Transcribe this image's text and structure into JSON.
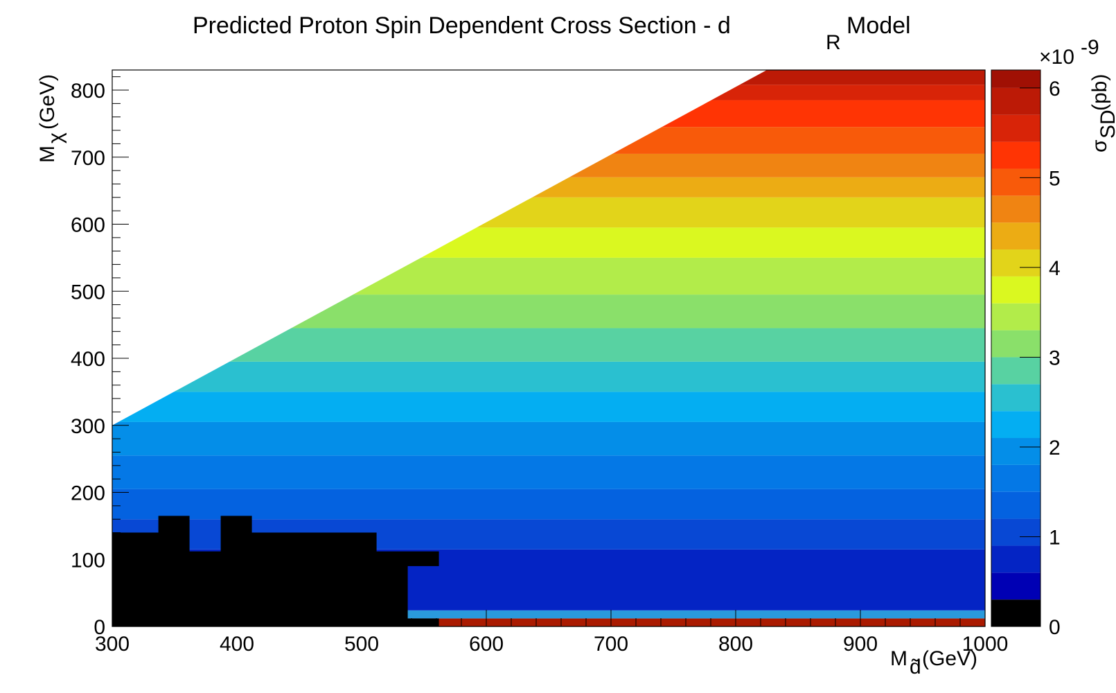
{
  "chart_data": {
    "type": "heatmap",
    "title": "Predicted Proton Spin Dependent Cross Section - d",
    "title_subscript": "R",
    "title_suffix": "Model",
    "xlabel_main": "M",
    "xlabel_sub": "d̃",
    "xlabel_unit": "(GeV)",
    "ylabel_main": "M",
    "ylabel_sub": "χ",
    "ylabel_unit": "(GeV)",
    "zlabel_main": "σ",
    "zlabel_sub": "SD",
    "zlabel_unit": "(pb)",
    "z_multiplier_base": "×10",
    "z_multiplier_exp": "-9",
    "xlim": [
      300,
      1000
    ],
    "ylim": [
      0,
      830
    ],
    "zlim": [
      0,
      6.2
    ],
    "x_ticks": [
      "300",
      "400",
      "500",
      "600",
      "700",
      "800",
      "900",
      "1000"
    ],
    "x_tick_values": [
      300,
      400,
      500,
      600,
      700,
      800,
      900,
      1000
    ],
    "y_ticks": [
      "0",
      "100",
      "200",
      "300",
      "400",
      "500",
      "600",
      "700",
      "800"
    ],
    "y_tick_values": [
      0,
      100,
      200,
      300,
      400,
      500,
      600,
      700,
      800
    ],
    "z_ticks": [
      "0",
      "1",
      "2",
      "3",
      "4",
      "5",
      "6"
    ],
    "z_tick_values": [
      0,
      1,
      2,
      3,
      4,
      5,
      6
    ],
    "allowed_region": "M_chi <= M_d - 300 + 300*(M_d-300)/... (kinematic triangle: from (300,300) to (830,830))",
    "triangle_boundary": [
      [
        300,
        300
      ],
      [
        825,
        830
      ]
    ],
    "bands": [
      {
        "y0": 0,
        "y1": 12,
        "color": "#aa1a00"
      },
      {
        "y0": 12,
        "y1": 24,
        "color": "#2a9adc"
      },
      {
        "y0": 24,
        "y1": 115,
        "color": "#0424c4"
      },
      {
        "y0": 115,
        "y1": 160,
        "color": "#0848d4"
      },
      {
        "y0": 160,
        "y1": 205,
        "color": "#0462e0"
      },
      {
        "y0": 205,
        "y1": 255,
        "color": "#0478e6"
      },
      {
        "y0": 255,
        "y1": 305,
        "color": "#048ee8"
      },
      {
        "y0": 305,
        "y1": 350,
        "color": "#04aef2"
      },
      {
        "y0": 350,
        "y1": 395,
        "color": "#2ac0d0"
      },
      {
        "y0": 395,
        "y1": 445,
        "color": "#58d2a2"
      },
      {
        "y0": 445,
        "y1": 495,
        "color": "#8ae06a"
      },
      {
        "y0": 495,
        "y1": 550,
        "color": "#b2ec4a"
      },
      {
        "y0": 550,
        "y1": 595,
        "color": "#daf820"
      },
      {
        "y0": 595,
        "y1": 640,
        "color": "#e2d41a"
      },
      {
        "y0": 640,
        "y1": 670,
        "color": "#ecac14"
      },
      {
        "y0": 670,
        "y1": 705,
        "color": "#f08412"
      },
      {
        "y0": 705,
        "y1": 745,
        "color": "#f85a0a"
      },
      {
        "y0": 745,
        "y1": 785,
        "color": "#ff3404"
      },
      {
        "y0": 785,
        "y1": 808,
        "color": "#d82408"
      },
      {
        "y0": 808,
        "y1": 830,
        "color": "#bc1a06"
      }
    ],
    "excluded_color": "#000000",
    "excluded_region": [
      [
        300,
        0
      ],
      [
        300,
        140
      ],
      [
        337,
        140
      ],
      [
        337,
        165
      ],
      [
        362,
        165
      ],
      [
        362,
        112
      ],
      [
        387,
        112
      ],
      [
        387,
        165
      ],
      [
        412,
        165
      ],
      [
        412,
        140
      ],
      [
        512,
        140
      ],
      [
        512,
        112
      ],
      [
        562,
        112
      ],
      [
        562,
        90
      ],
      [
        537,
        90
      ],
      [
        537,
        12
      ],
      [
        562,
        12
      ],
      [
        562,
        0
      ]
    ],
    "colorbar": [
      {
        "z0": 0,
        "z1": 0.3,
        "color": "#000000"
      },
      {
        "z0": 0.3,
        "z1": 0.6,
        "color": "#0000b4"
      },
      {
        "z0": 0.6,
        "z1": 0.9,
        "color": "#0424c4"
      },
      {
        "z0": 0.9,
        "z1": 1.2,
        "color": "#0848d4"
      },
      {
        "z0": 1.2,
        "z1": 1.5,
        "color": "#0462e0"
      },
      {
        "z0": 1.5,
        "z1": 1.8,
        "color": "#0478e6"
      },
      {
        "z0": 1.8,
        "z1": 2.1,
        "color": "#048ee8"
      },
      {
        "z0": 2.1,
        "z1": 2.4,
        "color": "#04aef2"
      },
      {
        "z0": 2.4,
        "z1": 2.7,
        "color": "#2ac0d0"
      },
      {
        "z0": 2.7,
        "z1": 3.0,
        "color": "#58d2a2"
      },
      {
        "z0": 3.0,
        "z1": 3.3,
        "color": "#8ae06a"
      },
      {
        "z0": 3.3,
        "z1": 3.6,
        "color": "#b2ec4a"
      },
      {
        "z0": 3.6,
        "z1": 3.9,
        "color": "#daf820"
      },
      {
        "z0": 3.9,
        "z1": 4.2,
        "color": "#e2d41a"
      },
      {
        "z0": 4.2,
        "z1": 4.5,
        "color": "#ecac14"
      },
      {
        "z0": 4.5,
        "z1": 4.8,
        "color": "#f08412"
      },
      {
        "z0": 4.8,
        "z1": 5.1,
        "color": "#f85a0a"
      },
      {
        "z0": 5.1,
        "z1": 5.4,
        "color": "#ff3404"
      },
      {
        "z0": 5.4,
        "z1": 5.7,
        "color": "#d82408"
      },
      {
        "z0": 5.7,
        "z1": 6.0,
        "color": "#bc1a06"
      },
      {
        "z0": 6.0,
        "z1": 6.2,
        "color": "#a01004"
      }
    ]
  }
}
